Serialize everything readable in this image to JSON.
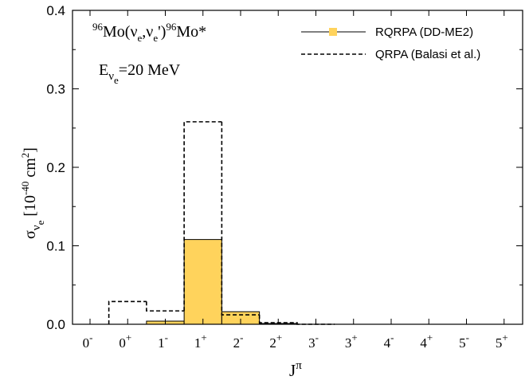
{
  "chart_data": {
    "type": "bar",
    "title": "96Mo(νe,νe')96Mo*",
    "title_parts": {
      "sup1": "96",
      "base1": "Mo(ν",
      "sub1": "e",
      "mid": ",ν",
      "sub2": "e",
      "post": "')",
      "sup2": "96",
      "base2": "Mo*"
    },
    "energy_label": {
      "base": "E",
      "nu": "ν",
      "sub": "e",
      "value": "=20 MeV"
    },
    "xlabel": {
      "base": "J",
      "sup": "π"
    },
    "ylabel": {
      "sigma": "σ",
      "nu": "ν",
      "sub": "e",
      "bracket_open": " [10",
      "exp": "-40",
      "unit": " cm",
      "unit_exp": "2",
      "bracket_close": "]"
    },
    "ylim": [
      0,
      0.4
    ],
    "yticks": [
      "0.0",
      "0.1",
      "0.2",
      "0.3",
      "0.4"
    ],
    "categories": [
      {
        "base": "0",
        "sup": "-"
      },
      {
        "base": "0",
        "sup": "+"
      },
      {
        "base": "1",
        "sup": "-"
      },
      {
        "base": "1",
        "sup": "+"
      },
      {
        "base": "2",
        "sup": "-"
      },
      {
        "base": "2",
        "sup": "+"
      },
      {
        "base": "3",
        "sup": "-"
      },
      {
        "base": "3",
        "sup": "+"
      },
      {
        "base": "4",
        "sup": "-"
      },
      {
        "base": "4",
        "sup": "+"
      },
      {
        "base": "5",
        "sup": "-"
      },
      {
        "base": "5",
        "sup": "+"
      }
    ],
    "series": [
      {
        "name": "RQRPA (DD-ME2)",
        "style": "filled-bar",
        "color": "#ffd35c",
        "values": [
          0.0,
          0.0,
          0.004,
          0.108,
          0.016,
          0.001,
          0.0,
          0.0,
          0.0,
          0.0,
          0.0,
          0.0
        ]
      },
      {
        "name": "QRPA (Balasi et al.)",
        "style": "dashed-step",
        "color": "#000000",
        "values": [
          0.0,
          0.029,
          0.017,
          0.258,
          0.012,
          0.002,
          0.0,
          0.0,
          0.0,
          0.0,
          0.0,
          0.0
        ]
      }
    ],
    "legend_position": "top-right",
    "grid": false
  }
}
